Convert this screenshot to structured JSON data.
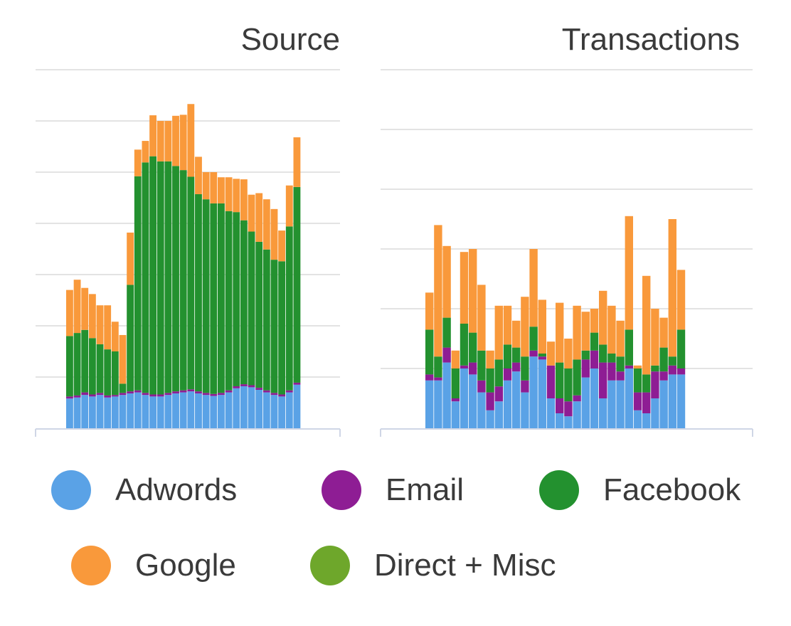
{
  "legend": {
    "items": [
      {
        "label": "Adwords",
        "color": "#5aa2e6"
      },
      {
        "label": "Email",
        "color": "#8e1d94"
      },
      {
        "label": "Facebook",
        "color": "#23912f"
      },
      {
        "label": "Google",
        "color": "#f9993b"
      },
      {
        "label": "Direct + Misc",
        "color": "#6ea72b"
      }
    ]
  },
  "chart_data": [
    {
      "type": "bar",
      "stacked": true,
      "title": "Source",
      "grid": true,
      "ylim": [
        0,
        7
      ],
      "series": [
        {
          "name": "Adwords",
          "color": "#5aa2e6",
          "values": [
            0.58,
            0.6,
            0.65,
            0.62,
            0.65,
            0.6,
            0.62,
            0.65,
            0.68,
            0.7,
            0.65,
            0.62,
            0.62,
            0.65,
            0.68,
            0.7,
            0.72,
            0.68,
            0.65,
            0.63,
            0.65,
            0.7,
            0.78,
            0.82,
            0.8,
            0.75,
            0.7,
            0.65,
            0.62,
            0.7,
            0.85
          ]
        },
        {
          "name": "Email",
          "color": "#8e1d94",
          "values": [
            0.04,
            0.04,
            0.05,
            0.04,
            0.04,
            0.04,
            0.03,
            0.04,
            0.04,
            0.04,
            0.04,
            0.04,
            0.04,
            0.04,
            0.04,
            0.04,
            0.04,
            0.04,
            0.04,
            0.04,
            0.04,
            0.04,
            0.04,
            0.04,
            0.04,
            0.04,
            0.04,
            0.04,
            0.04,
            0.04,
            0.04
          ]
        },
        {
          "name": "Facebook",
          "color": "#23912f",
          "values": [
            1.18,
            1.22,
            1.22,
            1.1,
            0.95,
            0.9,
            0.85,
            0.18,
            2.08,
            4.18,
            4.5,
            4.65,
            4.55,
            4.52,
            4.4,
            4.3,
            4.15,
            3.85,
            3.78,
            3.72,
            3.7,
            3.5,
            3.4,
            3.2,
            3.0,
            2.85,
            2.75,
            2.6,
            2.6,
            3.2,
            3.82
          ]
        },
        {
          "name": "Google",
          "color": "#f9993b",
          "values": [
            0.9,
            1.04,
            0.82,
            0.86,
            0.76,
            0.86,
            0.58,
            0.95,
            1.02,
            0.52,
            0.42,
            0.8,
            0.79,
            0.79,
            0.98,
            1.08,
            1.42,
            0.73,
            0.53,
            0.61,
            0.51,
            0.66,
            0.65,
            0.8,
            0.72,
            0.95,
            0.98,
            0.99,
            0.6,
            0.8,
            0.97
          ]
        },
        {
          "name": "Direct + Misc",
          "color": "#6ea72b",
          "values": [
            0,
            0,
            0,
            0,
            0,
            0,
            0,
            0,
            0,
            0,
            0,
            0,
            0,
            0,
            0,
            0,
            0,
            0,
            0,
            0,
            0,
            0,
            0,
            0,
            0,
            0,
            0,
            0,
            0,
            0,
            0
          ]
        }
      ]
    },
    {
      "type": "bar",
      "stacked": true,
      "title": "Transactions",
      "grid": true,
      "ylim": [
        0,
        6
      ],
      "series": [
        {
          "name": "Adwords",
          "color": "#5aa2e6",
          "values": [
            0.8,
            0.8,
            1.1,
            0.45,
            1.0,
            0.9,
            0.6,
            0.3,
            0.45,
            0.8,
            0.95,
            0.6,
            1.2,
            1.15,
            0.5,
            0.25,
            0.2,
            0.45,
            0.85,
            1.0,
            0.5,
            0.8,
            0.8,
            1.0,
            0.3,
            0.25,
            0.5,
            0.8,
            0.9,
            0.9
          ]
        },
        {
          "name": "Email",
          "color": "#8e1d94",
          "values": [
            0.1,
            0.05,
            0.25,
            0.05,
            0.05,
            0.2,
            0.2,
            0.3,
            0.25,
            0.2,
            0.15,
            0.2,
            0.1,
            0.05,
            0.55,
            0.25,
            0.25,
            0.1,
            0.3,
            0.3,
            0.6,
            0.3,
            0.15,
            0.05,
            0.3,
            0.35,
            0.45,
            0.15,
            0.15,
            0.1
          ]
        },
        {
          "name": "Facebook",
          "color": "#23912f",
          "values": [
            0.75,
            0.35,
            0.5,
            0.5,
            0.7,
            0.5,
            0.5,
            0.4,
            0.45,
            0.4,
            0.25,
            0.4,
            0.4,
            0.05,
            0.0,
            0.6,
            0.55,
            0.6,
            0.15,
            0.3,
            0.3,
            0.15,
            0.25,
            0.6,
            0.4,
            0.3,
            0.1,
            0.4,
            0.15,
            0.65
          ]
        },
        {
          "name": "Google",
          "color": "#f9993b",
          "values": [
            0.62,
            2.2,
            1.2,
            0.3,
            1.2,
            1.4,
            1.1,
            0.3,
            0.9,
            0.65,
            0.45,
            1.0,
            1.3,
            0.9,
            0.4,
            1.0,
            0.5,
            0.9,
            0.65,
            0.4,
            0.9,
            0.8,
            0.6,
            1.9,
            0.05,
            1.65,
            0.95,
            0.5,
            2.3,
            1.0
          ]
        },
        {
          "name": "Direct + Misc",
          "color": "#6ea72b",
          "values": [
            0,
            0,
            0,
            0,
            0,
            0,
            0,
            0,
            0,
            0,
            0,
            0,
            0,
            0,
            0,
            0,
            0,
            0,
            0,
            0,
            0,
            0,
            0,
            0,
            0,
            0,
            0,
            0,
            0,
            0
          ]
        }
      ]
    }
  ]
}
